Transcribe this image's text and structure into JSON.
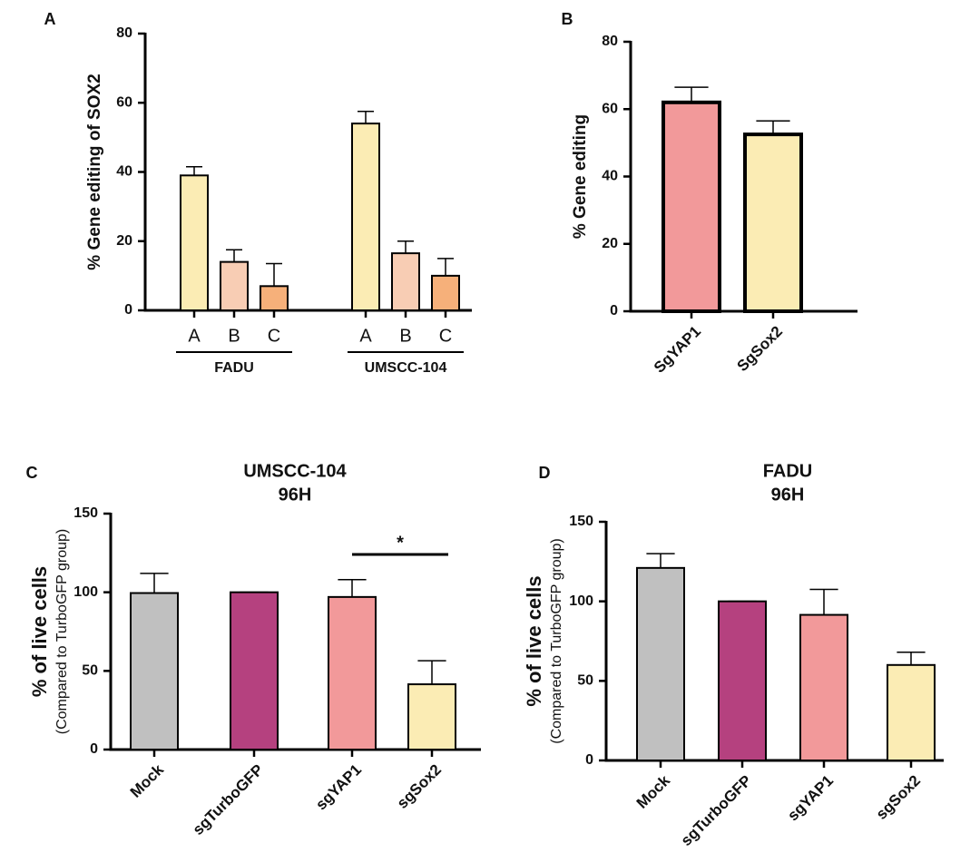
{
  "chart_data": [
    {
      "type": "bar",
      "panel": "A",
      "y_label": "% Gene editing of SOX2",
      "categories": [
        "A",
        "B",
        "C",
        "A",
        "B",
        "C"
      ],
      "group_labels": [
        "FADU",
        "UMSCC-104"
      ],
      "values": [
        39,
        14,
        7,
        54,
        16.5,
        10
      ],
      "errors": [
        2.5,
        3.5,
        6.5,
        3.5,
        3.5,
        5
      ],
      "colors": [
        "#fbecb4",
        "#f8cdb4",
        "#f6b07a",
        "#fbecb4",
        "#f8cdb4",
        "#f6b07a"
      ],
      "ylim": [
        0,
        80
      ],
      "yticks": [
        0,
        20,
        40,
        60,
        80
      ]
    },
    {
      "type": "bar",
      "panel": "B",
      "y_label": "% Gene editing",
      "categories": [
        "SgYAP1",
        "SgSox2"
      ],
      "values": [
        62,
        52.5
      ],
      "errors": [
        4.5,
        4
      ],
      "colors": [
        "#f2999a",
        "#fbecb4"
      ],
      "ylim": [
        0,
        80
      ],
      "yticks": [
        0,
        20,
        40,
        60,
        80
      ]
    },
    {
      "type": "bar",
      "panel": "C",
      "title": "UMSCC-104",
      "subtitle": "96H",
      "y_label": "% of live cells",
      "y_sublabel": "(Compared to TurboGFP group)",
      "categories": [
        "Mock",
        "sgTurboGFP",
        "sgYAP1",
        "sgSox2"
      ],
      "values": [
        99.5,
        100,
        97,
        41.5
      ],
      "errors": [
        12.5,
        0,
        11,
        15
      ],
      "colors": [
        "#c0c0c0",
        "#b5417f",
        "#f2999a",
        "#fbecb4"
      ],
      "ylim": [
        0,
        150
      ],
      "yticks": [
        0,
        50,
        100,
        150
      ],
      "annotation": {
        "text": "*"
      }
    },
    {
      "type": "bar",
      "panel": "D",
      "title": "FADU",
      "subtitle": "96H",
      "y_label": "% of live cells",
      "y_sublabel": "(Compared to TurboGFP group)",
      "categories": [
        "Mock",
        "sgTurboGFP",
        "sgYAP1",
        "sgSox2"
      ],
      "values": [
        121,
        100,
        91.5,
        60
      ],
      "errors": [
        9,
        0,
        16,
        8
      ],
      "colors": [
        "#c0c0c0",
        "#b5417f",
        "#f2999a",
        "#fbecb4"
      ],
      "ylim": [
        0,
        150
      ],
      "yticks": [
        0,
        50,
        100,
        150
      ]
    }
  ]
}
